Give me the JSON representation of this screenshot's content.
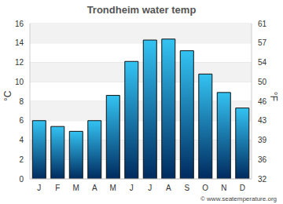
{
  "chart_data": {
    "type": "bar",
    "title": "Trondheim water temp",
    "categories": [
      "J",
      "F",
      "M",
      "A",
      "M",
      "J",
      "J",
      "A",
      "S",
      "O",
      "N",
      "D"
    ],
    "values": [
      6.0,
      5.4,
      4.9,
      6.0,
      8.6,
      12.1,
      14.3,
      14.4,
      13.2,
      10.8,
      8.9,
      7.3
    ],
    "color": "#33c3f2",
    "ylabel": "°C",
    "ylim": [
      0,
      16
    ],
    "yticks": [
      0,
      2,
      4,
      6,
      8,
      10,
      12,
      14,
      16
    ],
    "y2label": "°F",
    "y2lim": [
      32,
      60.8
    ],
    "y2ticks": [
      {
        "value": 32,
        "label": "32"
      },
      {
        "value": 35.6,
        "label": "36"
      },
      {
        "value": 39.2,
        "label": "39"
      },
      {
        "value": 42.8,
        "label": "43"
      },
      {
        "value": 46.4,
        "label": "46"
      },
      {
        "value": 50,
        "label": "50"
      },
      {
        "value": 53.6,
        "label": "54"
      },
      {
        "value": 57.2,
        "label": "57"
      },
      {
        "value": 60.8,
        "label": "61"
      }
    ],
    "grid": true,
    "annotations": [
      "© www.seatemperature.org"
    ]
  }
}
